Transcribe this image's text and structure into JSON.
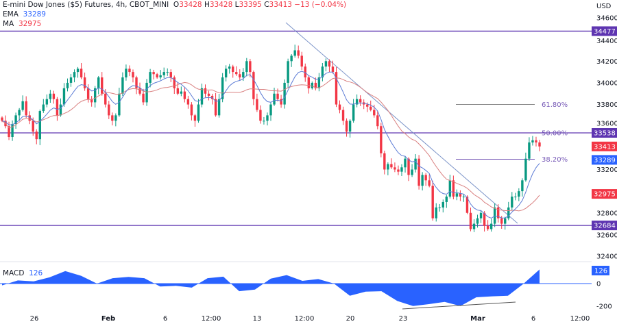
{
  "header": {
    "symbol": "E-mini Dow Jones ($5) Futures, 4h, CBOT_MINI",
    "o_label": "O",
    "o": "33428",
    "h_label": "H",
    "h": "33428",
    "l_label": "L",
    "l": "33395",
    "c_label": "C",
    "c": "33413",
    "change": "−13 (−0.04%)"
  },
  "indicators": {
    "ema_label": "EMA",
    "ema_value": "33289",
    "ma_label": "MA",
    "ma_value": "32975",
    "macd_label": "MACD",
    "macd_value": "126"
  },
  "currency": "USD",
  "colors": {
    "up": "#089981",
    "down": "#f23645",
    "ema": "#5b7bd5",
    "ma": "#d98080",
    "level": "#5e35b1",
    "trend": "#7b93c8",
    "macd": "#2962ff",
    "last_price": "#f23645"
  },
  "price_axis": {
    "ticks": [
      "34600",
      "34400",
      "34200",
      "34000",
      "33800",
      "33600",
      "33200",
      "32800",
      "32600",
      "32400"
    ]
  },
  "price_tags": [
    {
      "value": "34477",
      "color": "#5e35b1"
    },
    {
      "value": "33538",
      "color": "#5e35b1"
    },
    {
      "value": "33413",
      "color": "#f23645"
    },
    {
      "value": "33289",
      "color": "#2962ff"
    },
    {
      "value": "32975",
      "color": "#f23645"
    },
    {
      "value": "32684",
      "color": "#5e35b1"
    }
  ],
  "levels": [
    "34477",
    "33538",
    "32684"
  ],
  "fib_levels": [
    {
      "label": "61.80%",
      "price": 33800
    },
    {
      "label": "50.00%",
      "price": 33538
    },
    {
      "label": "38.20%",
      "price": 33295
    }
  ],
  "macd_axis": {
    "ticks": [
      "0",
      "-200"
    ],
    "tag": "126"
  },
  "time_axis": [
    {
      "label": "26",
      "bold": false
    },
    {
      "label": "Feb",
      "bold": true
    },
    {
      "label": "6",
      "bold": false
    },
    {
      "label": "12:00",
      "bold": false
    },
    {
      "label": "13",
      "bold": false
    },
    {
      "label": "12:00",
      "bold": false
    },
    {
      "label": "20",
      "bold": false
    },
    {
      "label": "23",
      "bold": false
    },
    {
      "label": "Mar",
      "bold": true
    },
    {
      "label": "6",
      "bold": false
    },
    {
      "label": "12:00",
      "bold": false
    }
  ],
  "chart_data": {
    "type": "candlestick",
    "closes": [
      33650,
      33600,
      33500,
      33620,
      33700,
      33750,
      33830,
      33700,
      33650,
      33550,
      33480,
      33740,
      33800,
      33850,
      33900,
      33850,
      33700,
      33800,
      33950,
      34000,
      34050,
      34100,
      34130,
      34050,
      33950,
      33850,
      33820,
      33950,
      34050,
      33900,
      33800,
      33700,
      33650,
      33700,
      33900,
      34050,
      34130,
      34100,
      34050,
      33950,
      33900,
      33820,
      34000,
      34100,
      34080,
      34050,
      34070,
      34100,
      34100,
      34050,
      33950,
      33900,
      33920,
      33850,
      33800,
      33700,
      33650,
      33800,
      33950,
      33900,
      33880,
      33850,
      33700,
      33850,
      34050,
      34130,
      34150,
      34100,
      34080,
      34050,
      34100,
      34200,
      34100,
      33850,
      33750,
      33650,
      33650,
      33700,
      33800,
      33900,
      33850,
      33800,
      34000,
      34200,
      34250,
      34300,
      34250,
      34150,
      34050,
      33950,
      34000,
      33950,
      34050,
      34150,
      34200,
      34150,
      34100,
      33800,
      33750,
      33650,
      33550,
      33650,
      33800,
      33850,
      33820,
      33800,
      33780,
      33750,
      33700,
      33600,
      33350,
      33200,
      33250,
      33220,
      33200,
      33180,
      33220,
      33300,
      33150,
      33200,
      33300,
      33050,
      33150,
      33100,
      33050,
      32750,
      32850,
      32850,
      32900,
      32950,
      33100,
      32950,
      32980,
      32950,
      32950,
      32800,
      32650,
      32700,
      32750,
      32800,
      32680,
      32650,
      32700,
      32850,
      32750,
      32700,
      32750,
      32850,
      32950,
      32950,
      33000,
      33100,
      33300,
      33450,
      33470,
      33450,
      33413
    ],
    "ylim": [
      32300,
      34650
    ],
    "macd_histogram": [
      -16,
      28,
      20,
      55,
      111,
      69,
      0,
      48,
      59,
      48,
      -26,
      -20,
      -36,
      48,
      61,
      -67,
      -53,
      44,
      75,
      24,
      40,
      0,
      -107,
      -71,
      -67,
      -154,
      -198,
      -182,
      -162,
      -198,
      -121,
      -113,
      -107,
      0,
      125
    ],
    "macd_ylim": [
      -260,
      160
    ]
  }
}
